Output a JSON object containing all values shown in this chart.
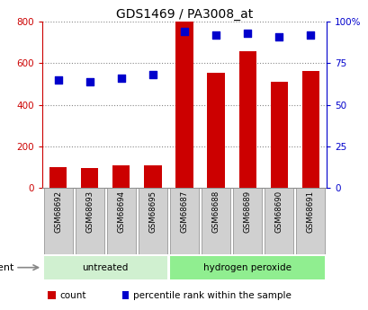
{
  "title": "GDS1469 / PA3008_at",
  "samples": [
    "GSM68692",
    "GSM68693",
    "GSM68694",
    "GSM68695",
    "GSM68687",
    "GSM68688",
    "GSM68689",
    "GSM68690",
    "GSM68691"
  ],
  "counts": [
    100,
    95,
    108,
    110,
    800,
    555,
    660,
    510,
    565
  ],
  "percentile_ranks": [
    65,
    64,
    66,
    68,
    94,
    92,
    93,
    91,
    92
  ],
  "groups": [
    "untreated",
    "untreated",
    "untreated",
    "untreated",
    "hydrogen peroxide",
    "hydrogen peroxide",
    "hydrogen peroxide",
    "hydrogen peroxide",
    "hydrogen peroxide"
  ],
  "group_labels": [
    "untreated",
    "hydrogen peroxide"
  ],
  "group_colors": [
    "#d0f0d0",
    "#90ee90"
  ],
  "bar_color": "#cc0000",
  "dot_color": "#0000cc",
  "ylim_left": [
    0,
    800
  ],
  "ylim_right": [
    0,
    100
  ],
  "yticks_left": [
    0,
    200,
    400,
    600,
    800
  ],
  "ytick_labels_left": [
    "0",
    "200",
    "400",
    "600",
    "800"
  ],
  "yticks_right": [
    0,
    25,
    50,
    75,
    100
  ],
  "ytick_labels_right": [
    "0",
    "25",
    "50",
    "75",
    "100%"
  ],
  "left_axis_color": "#cc0000",
  "right_axis_color": "#0000cc",
  "grid_color": "#888888",
  "bg_color": "#ffffff",
  "plot_bg_color": "#ffffff",
  "agent_label": "agent",
  "legend_count_label": "count",
  "legend_percentile_label": "percentile rank within the sample",
  "sample_box_color": "#d0d0d0",
  "sample_box_edge": "#888888"
}
